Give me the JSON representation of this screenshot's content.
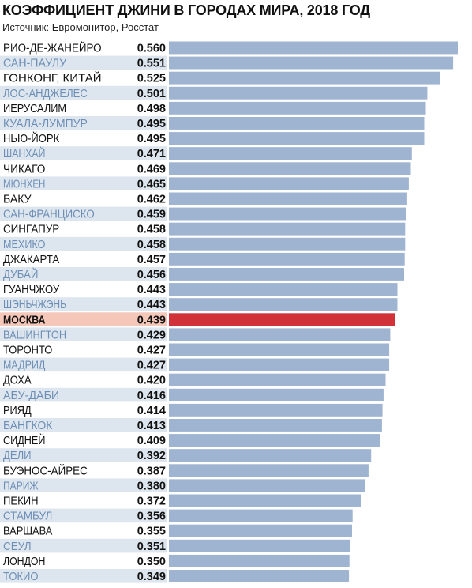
{
  "chart_data": {
    "type": "bar",
    "orientation": "horizontal",
    "title": "КОЭФФИЦИЕНТ ДЖИНИ В ГОРОДАХ МИРА, 2018 ГОД",
    "subtitle": "Источник: Евромонитор, Росстат",
    "categories": [
      "РИО-ДЕ-ЖАНЕЙРО",
      "САН-ПАУЛУ",
      "ГОНКОНГ, КИТАЙ",
      "ЛОС-АНДЖЕЛЕС",
      "ИЕРУСАЛИМ",
      "КУАЛА-ЛУМПУР",
      "НЬЮ-ЙОРК",
      "ШАНХАЙ",
      "ЧИКАГО",
      "МЮНХЕН",
      "БАКУ",
      "САН-ФРАНЦИСКО",
      "СИНГАПУР",
      "МЕХИКО",
      "ДЖАКАРТА",
      "ДУБАЙ",
      "ГУАНЧЖОУ",
      "ШЭНЬЧЖЭНЬ",
      "МОСКВА",
      "ВАШИНГТОН",
      "ТОРОНТО",
      "МАДРИД",
      "ДОХА",
      "АБУ-ДАБИ",
      "РИЯД",
      "БАНГКОК",
      "СИДНЕЙ",
      "ДЕЛИ",
      "БУЭНОС-АЙРЕС",
      "ПАРИЖ",
      "ПЕКИН",
      "СТАМБУЛ",
      "ВАРШАВА",
      "СЕУЛ",
      "ЛОНДОН",
      "ТОКИО"
    ],
    "values": [
      0.56,
      0.551,
      0.525,
      0.501,
      0.498,
      0.495,
      0.495,
      0.471,
      0.469,
      0.465,
      0.462,
      0.459,
      0.458,
      0.458,
      0.457,
      0.456,
      0.443,
      0.443,
      0.439,
      0.429,
      0.427,
      0.427,
      0.42,
      0.416,
      0.414,
      0.413,
      0.409,
      0.392,
      0.387,
      0.38,
      0.372,
      0.356,
      0.355,
      0.351,
      0.35,
      0.349
    ],
    "value_labels": [
      "0.560",
      "0.551",
      "0.525",
      "0.501",
      "0.498",
      "0.495",
      "0.495",
      "0.471",
      "0.469",
      "0.465",
      "0.462",
      "0.459",
      "0.458",
      "0.458",
      "0.457",
      "0.456",
      "0.443",
      "0.443",
      "0.439",
      "0.429",
      "0.427",
      "0.427",
      "0.420",
      "0.416",
      "0.414",
      "0.413",
      "0.409",
      "0.392",
      "0.387",
      "0.380",
      "0.372",
      "0.356",
      "0.355",
      "0.351",
      "0.350",
      "0.349"
    ],
    "highlight_category": "МОСКВА",
    "colors": {
      "bar": "#9fb4d1",
      "bar_highlight": "#d1323a",
      "row_stripe": "#dde6ef",
      "row_highlight": "#f4c7b9",
      "label_dark": "#111111",
      "label_light": "#6e8fb5",
      "value_text": "#111111"
    },
    "label_styles": [
      "dark",
      "light",
      "dark",
      "light",
      "dark",
      "light",
      "dark",
      "light",
      "dark",
      "light",
      "dark",
      "light",
      "dark",
      "light",
      "dark",
      "light",
      "dark",
      "light",
      "dark",
      "light",
      "dark",
      "light",
      "dark",
      "light",
      "dark",
      "light",
      "dark",
      "light",
      "dark",
      "light",
      "dark",
      "light",
      "dark",
      "light",
      "dark",
      "light"
    ]
  }
}
